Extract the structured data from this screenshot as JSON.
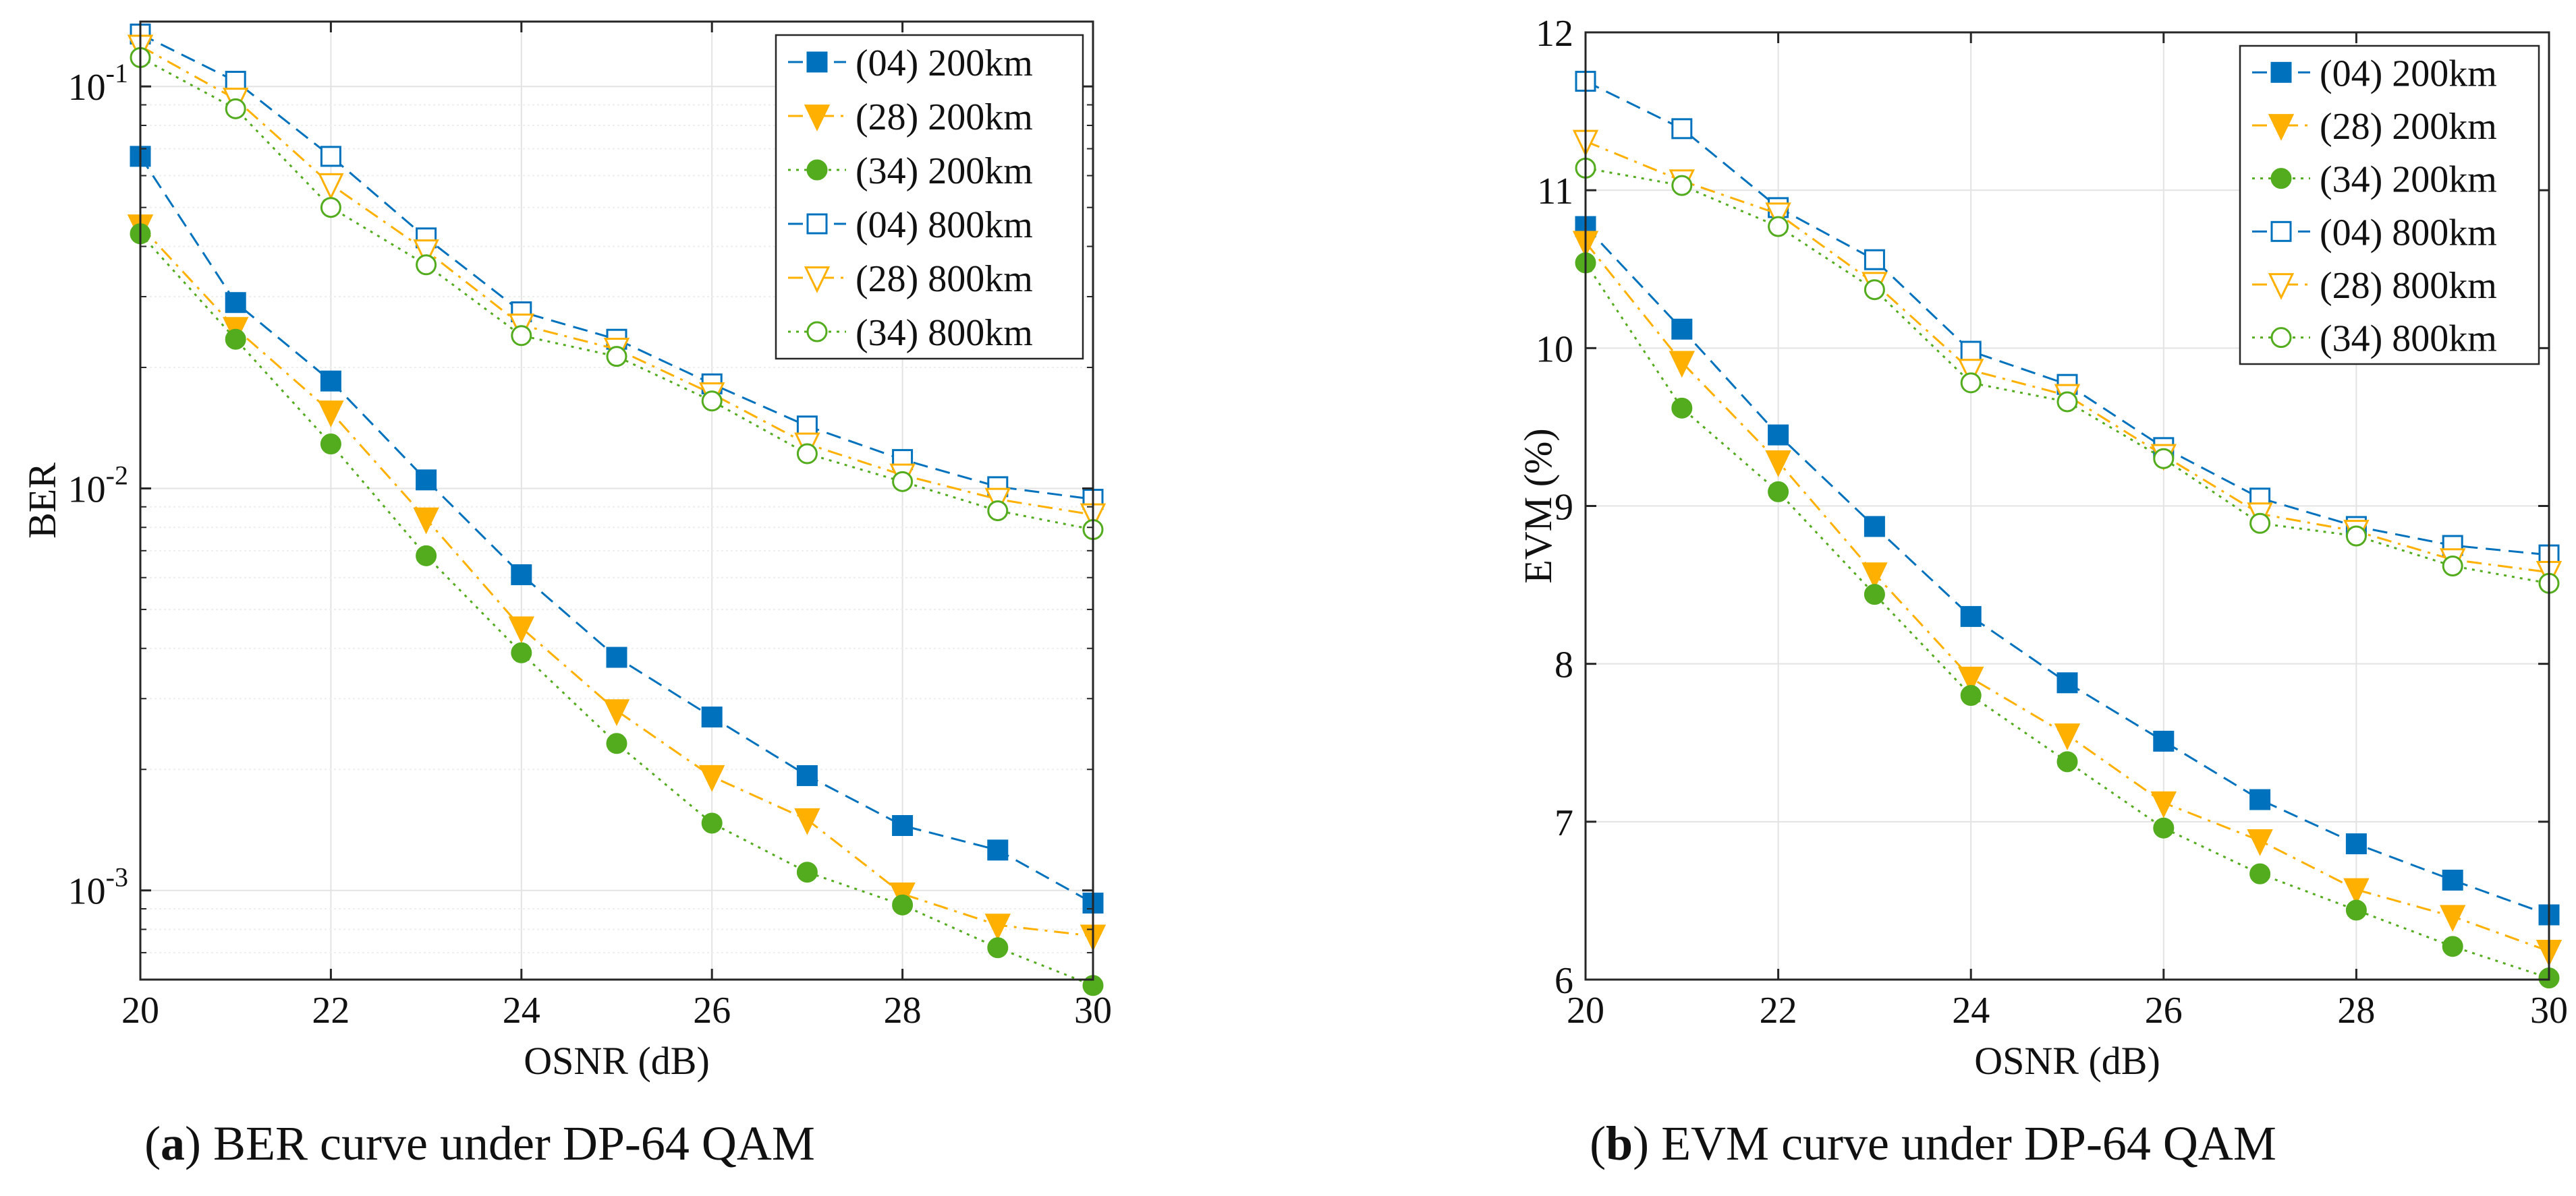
{
  "figure": {
    "caption_a": {
      "letter": "a",
      "text": " BER curve under DP-64 QAM",
      "open": "(",
      "close": ")"
    },
    "caption_b": {
      "letter": "b",
      "text": " EVM curve under DP-64 QAM",
      "open": "(",
      "close": ")"
    }
  },
  "colors": {
    "blue": "#0072BD",
    "orange": "#FFB000",
    "green": "#53AC1E",
    "grid": "#E3E3E3",
    "axis": "#262626"
  },
  "chart_data": [
    {
      "type": "line",
      "title": "",
      "xlabel": "OSNR (dB)",
      "ylabel": "BER",
      "yscale": "log",
      "xlim": [
        20,
        30
      ],
      "ylim": [
        0.0006,
        0.145
      ],
      "xticks": [
        20,
        22,
        24,
        26,
        28,
        30
      ],
      "xtick_labels": [
        "20",
        "22",
        "24",
        "26",
        "28",
        "30"
      ],
      "yticks": [
        0.001,
        0.01,
        0.1
      ],
      "ytick_labels": [
        {
          "base": "10",
          "exp": "-3"
        },
        {
          "base": "10",
          "exp": "-2"
        },
        {
          "base": "10",
          "exp": "-1"
        }
      ],
      "grid": true,
      "legend": "top-right",
      "x": [
        20,
        21,
        22,
        23,
        24,
        25,
        26,
        27,
        28,
        29,
        30
      ],
      "series": [
        {
          "name": "(04) 200km",
          "color": "#0072BD",
          "marker": "square",
          "filled": true,
          "dash": "dashed",
          "values": [
            0.067,
            0.029,
            0.0185,
            0.0105,
            0.0061,
            0.0038,
            0.0027,
            0.00193,
            0.00145,
            0.00126,
            0.00093
          ]
        },
        {
          "name": "(28) 200km",
          "color": "#FFB000",
          "marker": "triangle-down",
          "filled": true,
          "dash": "dashdot",
          "values": [
            0.045,
            0.025,
            0.0155,
            0.0084,
            0.0045,
            0.0028,
            0.00192,
            0.0015,
            0.00098,
            0.00082,
            0.00077
          ]
        },
        {
          "name": "(34) 200km",
          "color": "#53AC1E",
          "marker": "circle",
          "filled": true,
          "dash": "dotted",
          "values": [
            0.043,
            0.0235,
            0.0129,
            0.0068,
            0.0039,
            0.00232,
            0.00147,
            0.00111,
            0.00092,
            0.00072,
            0.00058
          ]
        },
        {
          "name": "(04) 800km",
          "color": "#0072BD",
          "marker": "square",
          "filled": false,
          "dash": "dashed",
          "values": [
            0.135,
            0.103,
            0.067,
            0.042,
            0.0275,
            0.0235,
            0.0182,
            0.0143,
            0.0118,
            0.0101,
            0.0094
          ]
        },
        {
          "name": "(28) 800km",
          "color": "#FFB000",
          "marker": "triangle-down",
          "filled": false,
          "dash": "dashdot",
          "values": [
            0.126,
            0.093,
            0.057,
            0.039,
            0.0255,
            0.0222,
            0.0172,
            0.0129,
            0.0108,
            0.0094,
            0.0086
          ]
        },
        {
          "name": "(34) 800km",
          "color": "#53AC1E",
          "marker": "circle",
          "filled": false,
          "dash": "dotted",
          "values": [
            0.118,
            0.088,
            0.05,
            0.036,
            0.024,
            0.0213,
            0.0165,
            0.0122,
            0.0104,
            0.0088,
            0.0079
          ]
        }
      ]
    },
    {
      "type": "line",
      "title": "",
      "xlabel": "OSNR (dB)",
      "ylabel": "EVM (%)",
      "yscale": "linear",
      "xlim": [
        20,
        30
      ],
      "ylim": [
        6,
        12
      ],
      "xticks": [
        20,
        22,
        24,
        26,
        28,
        30
      ],
      "xtick_labels": [
        "20",
        "22",
        "24",
        "26",
        "28",
        "30"
      ],
      "yticks": [
        6,
        7,
        8,
        9,
        10,
        11,
        12
      ],
      "ytick_labels": [
        "6",
        "7",
        "8",
        "9",
        "10",
        "11",
        "12"
      ],
      "grid": true,
      "legend": "top-right",
      "x": [
        20,
        21,
        22,
        23,
        24,
        25,
        26,
        27,
        28,
        29,
        30
      ],
      "series": [
        {
          "name": "(04) 200km",
          "color": "#0072BD",
          "marker": "square",
          "filled": true,
          "dash": "dashed",
          "values": [
            10.77,
            10.12,
            9.45,
            8.87,
            8.3,
            7.88,
            7.51,
            7.14,
            6.86,
            6.63,
            6.41
          ]
        },
        {
          "name": "(28) 200km",
          "color": "#FFB000",
          "marker": "triangle-down",
          "filled": true,
          "dash": "dashdot",
          "values": [
            10.67,
            9.91,
            9.28,
            8.57,
            7.91,
            7.55,
            7.12,
            6.88,
            6.57,
            6.4,
            6.18
          ]
        },
        {
          "name": "(34) 200km",
          "color": "#53AC1E",
          "marker": "circle",
          "filled": true,
          "dash": "dotted",
          "values": [
            10.54,
            9.62,
            9.09,
            8.44,
            7.8,
            7.38,
            6.96,
            6.67,
            6.44,
            6.21,
            6.01
          ]
        },
        {
          "name": "(04) 800km",
          "color": "#0072BD",
          "marker": "square",
          "filled": false,
          "dash": "dashed",
          "values": [
            11.69,
            11.39,
            10.89,
            10.56,
            9.98,
            9.77,
            9.37,
            9.05,
            8.87,
            8.75,
            8.69
          ]
        },
        {
          "name": "(28) 800km",
          "color": "#FFB000",
          "marker": "triangle-down",
          "filled": false,
          "dash": "dashdot",
          "values": [
            11.31,
            11.06,
            10.85,
            10.41,
            9.86,
            9.7,
            9.32,
            8.95,
            8.84,
            8.66,
            8.58
          ]
        },
        {
          "name": "(34) 800km",
          "color": "#53AC1E",
          "marker": "circle",
          "filled": false,
          "dash": "dotted",
          "values": [
            11.14,
            11.03,
            10.77,
            10.37,
            9.78,
            9.66,
            9.3,
            8.89,
            8.81,
            8.62,
            8.51
          ]
        }
      ]
    }
  ]
}
